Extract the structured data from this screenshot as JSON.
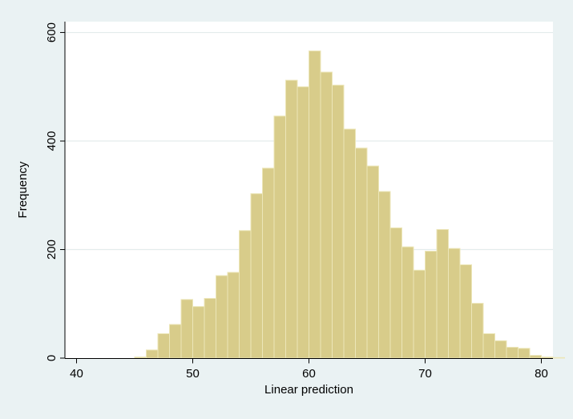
{
  "chart_data": {
    "type": "bar",
    "xlabel": "Linear prediction",
    "ylabel": "Frequency",
    "xlim": [
      39,
      81
    ],
    "ylim": [
      0,
      620
    ],
    "xticks": [
      40,
      50,
      60,
      70,
      80
    ],
    "yticks": [
      0,
      200,
      400,
      600
    ],
    "grid": true,
    "bin_width": 1,
    "bins": [
      {
        "x": 45.5,
        "value": 2
      },
      {
        "x": 46.5,
        "value": 15
      },
      {
        "x": 47.5,
        "value": 45
      },
      {
        "x": 48.5,
        "value": 62
      },
      {
        "x": 49.5,
        "value": 108
      },
      {
        "x": 50.5,
        "value": 95
      },
      {
        "x": 51.5,
        "value": 110
      },
      {
        "x": 52.5,
        "value": 152
      },
      {
        "x": 53.5,
        "value": 158
      },
      {
        "x": 54.5,
        "value": 235
      },
      {
        "x": 55.5,
        "value": 303
      },
      {
        "x": 56.5,
        "value": 350
      },
      {
        "x": 57.5,
        "value": 446
      },
      {
        "x": 58.5,
        "value": 512
      },
      {
        "x": 59.5,
        "value": 500
      },
      {
        "x": 60.5,
        "value": 566
      },
      {
        "x": 61.5,
        "value": 527
      },
      {
        "x": 62.5,
        "value": 503
      },
      {
        "x": 63.5,
        "value": 422
      },
      {
        "x": 64.5,
        "value": 387
      },
      {
        "x": 65.5,
        "value": 354
      },
      {
        "x": 66.5,
        "value": 307
      },
      {
        "x": 67.5,
        "value": 240
      },
      {
        "x": 68.5,
        "value": 205
      },
      {
        "x": 69.5,
        "value": 162
      },
      {
        "x": 70.5,
        "value": 197
      },
      {
        "x": 71.5,
        "value": 237
      },
      {
        "x": 72.5,
        "value": 202
      },
      {
        "x": 73.5,
        "value": 172
      },
      {
        "x": 74.5,
        "value": 101
      },
      {
        "x": 75.5,
        "value": 45
      },
      {
        "x": 76.5,
        "value": 32
      },
      {
        "x": 77.5,
        "value": 20
      },
      {
        "x": 78.5,
        "value": 18
      },
      {
        "x": 79.5,
        "value": 5
      },
      {
        "x": 80.5,
        "value": 2
      },
      {
        "x": 81.5,
        "value": 1
      }
    ]
  },
  "colors": {
    "outer_background": "#eaf2f3",
    "plot_background": "#ffffff",
    "bar_fill": "#d8cc8a",
    "bar_stroke": "#ece6b8",
    "grid": "#e3ecec",
    "axis": "#000000"
  }
}
